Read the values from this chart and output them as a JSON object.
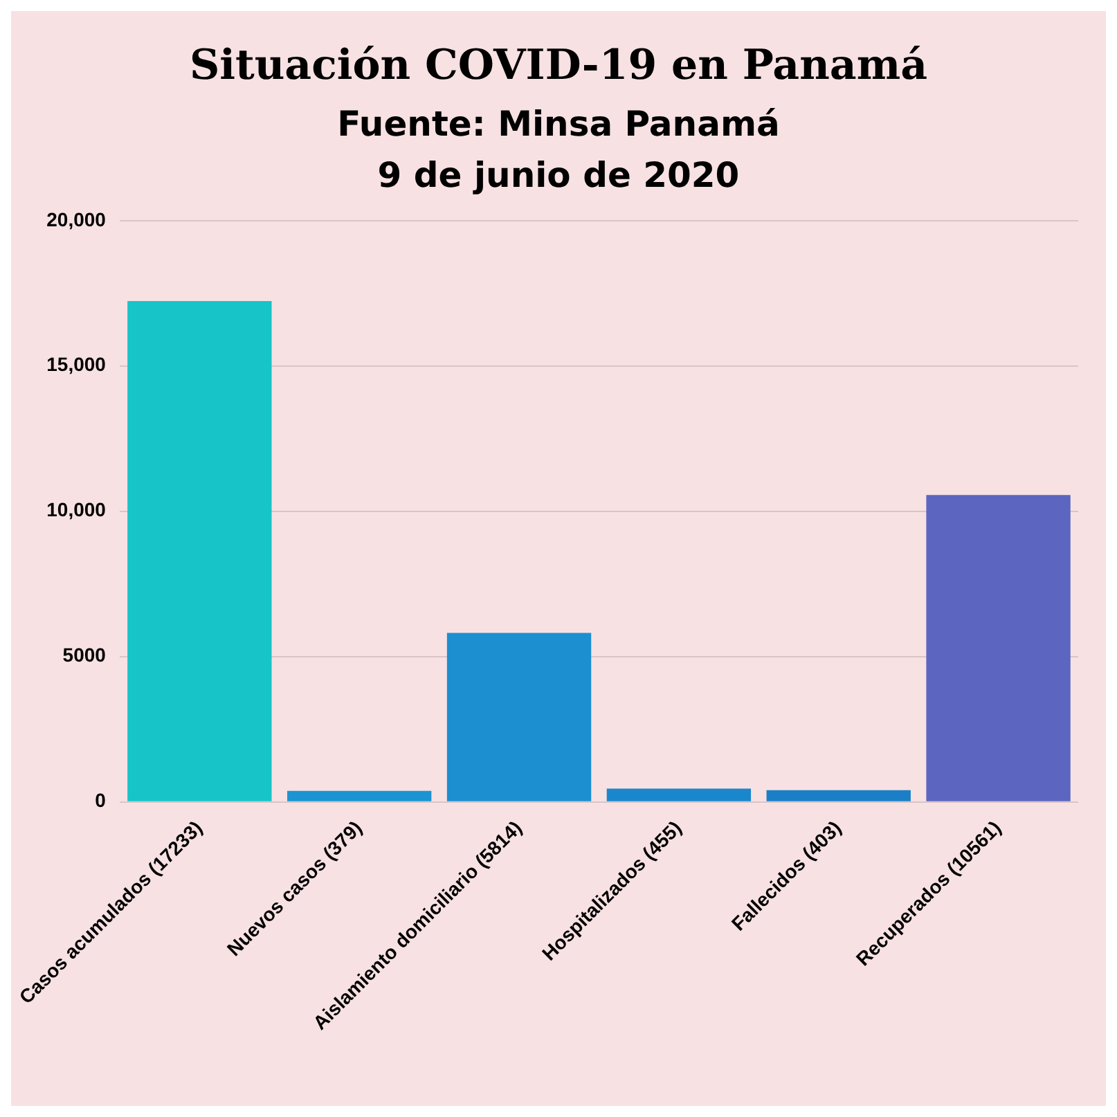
{
  "chart_data": {
    "type": "bar",
    "title": "Situación COVID-19 en Panamá",
    "subtitle": "Fuente: Minsa Panamá",
    "annotations": [
      "9 de junio de 2020"
    ],
    "categories": [
      "Casos acumulados (17233)",
      "Nuevos casos (379)",
      "Aislamiento domiciliario (5814)",
      "Hospitalizados (455)",
      "Fallecidos (403)",
      "Recuperados (10561)"
    ],
    "values": [
      17233,
      379,
      5814,
      455,
      403,
      10561
    ],
    "colors": [
      "#17c4c8",
      "#1b95d2",
      "#1b8fd0",
      "#1a86cc",
      "#1b7fc8",
      "#5c66c0"
    ],
    "ylim": [
      0,
      20000
    ],
    "yticks": [
      0,
      5000,
      {
        "value": 10000,
        "label": "10,000"
      },
      {
        "value": 15000,
        "label": "15,000"
      },
      {
        "value": 20000,
        "label": "20,000"
      }
    ],
    "grid": "y",
    "legend": false
  }
}
